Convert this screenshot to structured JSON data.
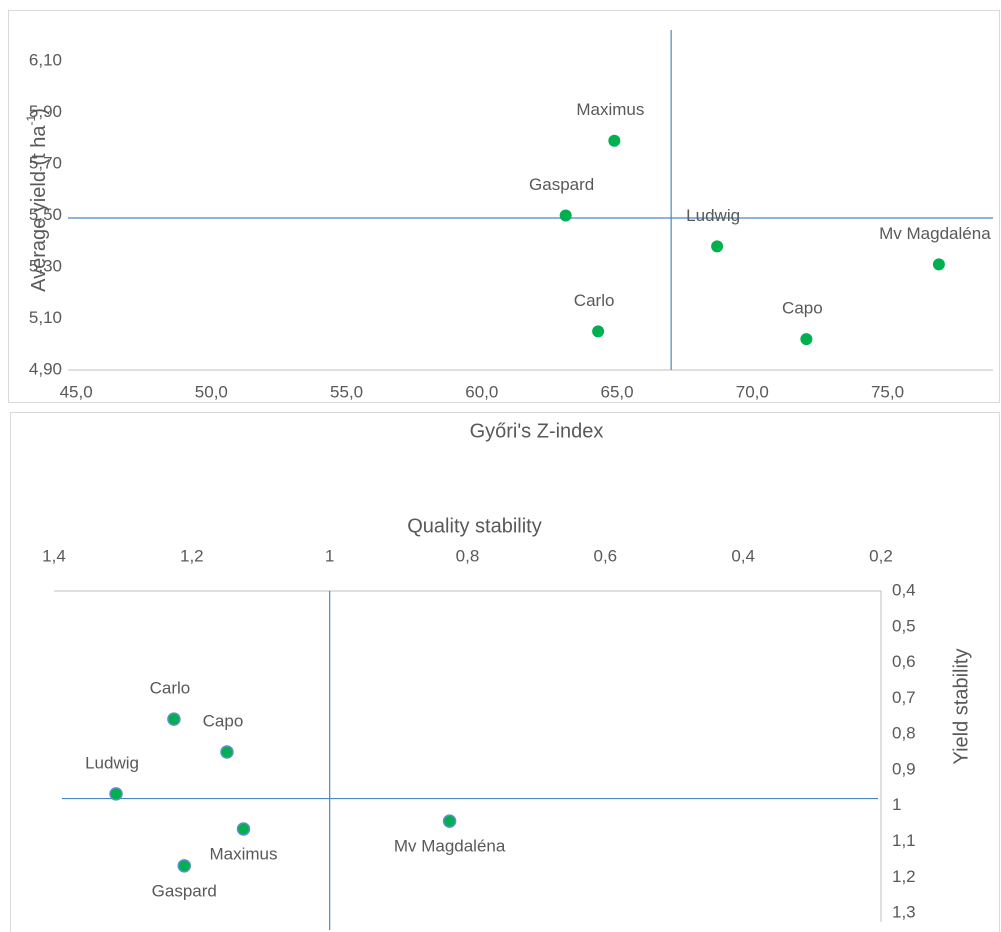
{
  "chart_data": [
    {
      "type": "scatter",
      "x_label": "Győri's Z-index",
      "y_label": "Average yield (t ha",
      "y_label_sup": "-1",
      "y_label_end": ")",
      "xlim": [
        44.7,
        78.9
      ],
      "xticks": [
        {
          "value": 45,
          "label": "45,0"
        },
        {
          "value": 50,
          "label": "50,0"
        },
        {
          "value": 55,
          "label": "55,0"
        },
        {
          "value": 60,
          "label": "60,0"
        },
        {
          "value": 65,
          "label": "65,0"
        },
        {
          "value": 70,
          "label": "70,0"
        },
        {
          "value": 75,
          "label": "75,0"
        }
      ],
      "ylim": [
        4.9,
        6.22
      ],
      "yticks": [
        {
          "value": 4.9,
          "label": "4,90"
        },
        {
          "value": 5.1,
          "label": "5,10"
        },
        {
          "value": 5.3,
          "label": "5,30"
        },
        {
          "value": 5.5,
          "label": "5,50"
        },
        {
          "value": 5.7,
          "label": "5,70"
        },
        {
          "value": 5.9,
          "label": "5,90"
        },
        {
          "value": 6.1,
          "label": "6,10"
        }
      ],
      "labels": [
        "Maximus",
        "Gaspard",
        "Ludwig",
        "Mv Magdaléna",
        "Carlo",
        "Capo"
      ],
      "x": [
        64.9,
        63.1,
        68.7,
        76.9,
        64.3,
        72.0
      ],
      "values": [
        5.79,
        5.5,
        5.38,
        5.31,
        5.05,
        5.02
      ],
      "color": "#00b050",
      "ref_x": 67.0,
      "ref_y": 5.49,
      "ref_color": "#4a86c5",
      "x_axis_position": "bottom",
      "y_axis_position": "left",
      "y_inverted": false
    },
    {
      "type": "scatter",
      "x_label": "Quality stability",
      "y_label": "Yield stability",
      "xlim": [
        1.4,
        0.2
      ],
      "xticks": [
        {
          "value": 1.4,
          "label": "1,4"
        },
        {
          "value": 1.2,
          "label": "1,2"
        },
        1,
        {
          "value": 0.8,
          "label": "0,8"
        },
        {
          "value": 0.6,
          "label": "0,6"
        },
        {
          "value": 0.4,
          "label": "0,4"
        },
        {
          "value": 0.2,
          "label": "0,2"
        }
      ],
      "ylim": [
        0.4,
        1.325
      ],
      "yticks": [
        {
          "value": 0.4,
          "label": "0,4"
        },
        {
          "value": 0.5,
          "label": "0,5"
        },
        {
          "value": 0.6,
          "label": "0,6"
        },
        {
          "value": 0.7,
          "label": "0,7"
        },
        {
          "value": 0.8,
          "label": "0,8"
        },
        {
          "value": 0.9,
          "label": "0,9"
        },
        1,
        {
          "value": 1.1,
          "label": "1,1"
        },
        {
          "value": 1.2,
          "label": "1,2"
        },
        {
          "value": 1.3,
          "label": "1,3"
        }
      ],
      "labels": [
        "Carlo",
        "Capo",
        "Ludwig",
        "Maximus",
        "Gaspard",
        "Mv Magdaléna"
      ],
      "x": [
        1.226,
        1.149,
        1.31,
        1.125,
        1.211,
        0.826
      ],
      "values": [
        0.758,
        0.85,
        0.967,
        1.065,
        1.168,
        1.043
      ],
      "color": "#00b050",
      "edge_color": "#5b8fc5",
      "ref_x": 1.0,
      "ref_y": 0.98,
      "ref_color": "#4a86c5",
      "x_axis_position": "top",
      "y_axis_position": "right",
      "y_inverted": true
    }
  ]
}
